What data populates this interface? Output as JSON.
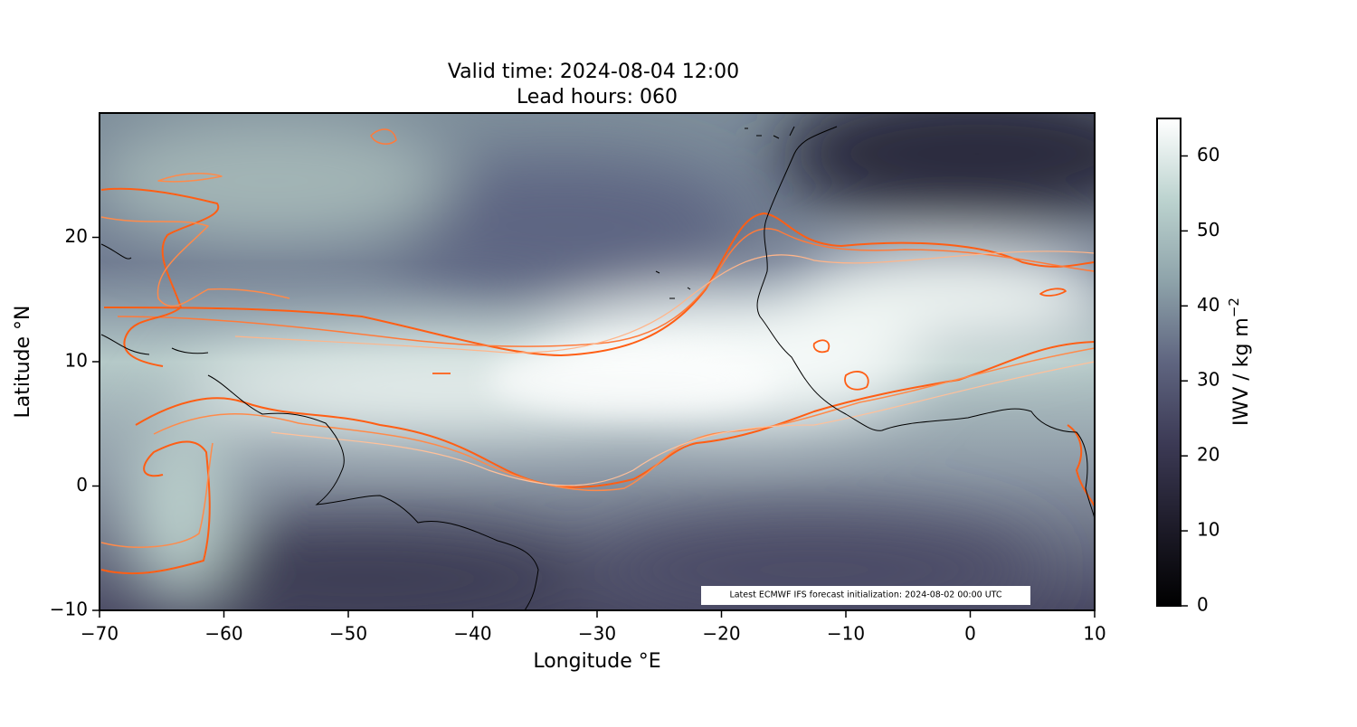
{
  "chart_data": {
    "type": "map",
    "title": [
      "Valid time: 2024-08-04 12:00",
      "Lead hours: 060"
    ],
    "x_label": "Longitude °E",
    "y_label": "Latitude °N",
    "xlim": [
      -70,
      10
    ],
    "ylim": [
      -10,
      30
    ],
    "xticks": [
      {
        "value": -70,
        "label": "−70"
      },
      {
        "value": -60,
        "label": "−60"
      },
      {
        "value": -50,
        "label": "−50"
      },
      {
        "value": -40,
        "label": "−40"
      },
      {
        "value": -30,
        "label": "−30"
      },
      {
        "value": -20,
        "label": "−20"
      },
      {
        "value": -10,
        "label": "−10"
      },
      0,
      10
    ],
    "yticks": [
      {
        "value": -10,
        "label": "−10"
      },
      0,
      10,
      20
    ],
    "colorbar_label": "IWV / kg m",
    "colorbar_label_exponent": "−2",
    "clim": [
      0,
      65
    ],
    "cticks": [
      0,
      10,
      20,
      30,
      40,
      50,
      60
    ],
    "colormap": [
      "#000000",
      "#1e1c2a",
      "#3c3a55",
      "#5f6580",
      "#8ea3aa",
      "#bcd3cf",
      "#ffffff"
    ],
    "annotation": "Latest ECMWF IFS forecast initialization: 2024-08-02 00:00 UTC"
  }
}
